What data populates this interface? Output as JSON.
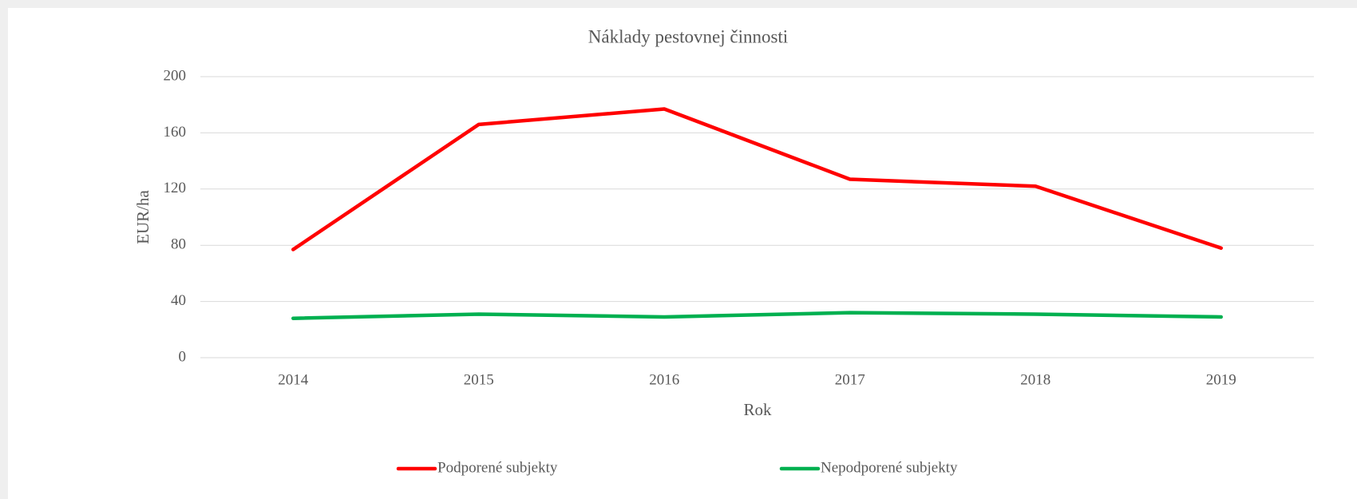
{
  "chart_data": {
    "type": "line",
    "title": "Náklady pestovnej činnosti",
    "x_label": "Rok",
    "y_label": "EUR/ha",
    "categories": [
      "2014",
      "2015",
      "2016",
      "2017",
      "2018",
      "2019"
    ],
    "series": [
      {
        "name": "Podporené subjekty",
        "color": "#ff0000",
        "values": [
          77,
          166,
          177,
          127,
          122,
          78
        ]
      },
      {
        "name": "Nepodporené subjekty",
        "color": "#00b050",
        "values": [
          28,
          31,
          29,
          32,
          31,
          29
        ]
      }
    ],
    "ylim": [
      0,
      200
    ],
    "yticks": [
      0,
      40,
      80,
      120,
      160,
      200
    ],
    "grid": true,
    "legend": "bottom"
  }
}
